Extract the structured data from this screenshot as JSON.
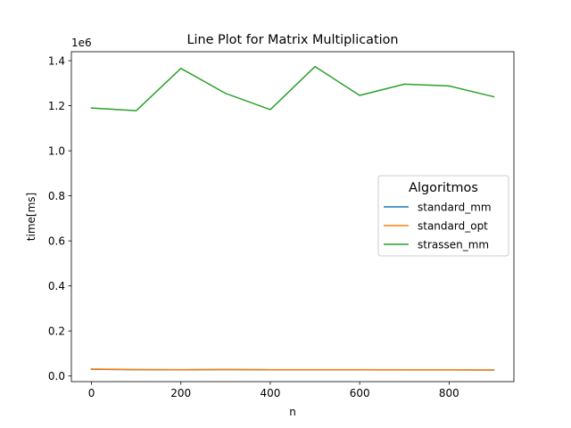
{
  "chart_data": {
    "type": "line",
    "title": "Line Plot for Matrix Multiplication",
    "xlabel": "n",
    "ylabel": "time[ms]",
    "y_offset_label": "1e6",
    "xlim": [
      -45,
      945
    ],
    "ylim": [
      -25000,
      1440000
    ],
    "x_ticks": [
      0,
      200,
      400,
      600,
      800
    ],
    "x_tick_labels": [
      "0",
      "200",
      "400",
      "600",
      "800"
    ],
    "y_ticks": [
      0,
      200000,
      400000,
      600000,
      800000,
      1000000,
      1200000,
      1400000
    ],
    "y_tick_labels": [
      "0.0",
      "0.2",
      "0.4",
      "0.6",
      "0.8",
      "1.0",
      "1.2",
      "1.4"
    ],
    "x": [
      0,
      100,
      200,
      300,
      400,
      500,
      600,
      700,
      800,
      900
    ],
    "grid": false,
    "legend": {
      "title": "Algoritmos",
      "placement": "center-right"
    },
    "series": [
      {
        "name": "standard_mm",
        "color": "#1f77b4",
        "values": [
          30000,
          28000,
          27500,
          28500,
          27500,
          27500,
          27500,
          27000,
          27000,
          26500
        ]
      },
      {
        "name": "standard_opt",
        "color": "#ff7f0e",
        "values": [
          31000,
          28500,
          28000,
          29000,
          28000,
          28000,
          28000,
          27500,
          27500,
          27000
        ]
      },
      {
        "name": "strassen_mm",
        "color": "#2ca02c",
        "values": [
          1190000,
          1178000,
          1366000,
          1255000,
          1183000,
          1374000,
          1246000,
          1296000,
          1288000,
          1240000
        ]
      }
    ]
  }
}
